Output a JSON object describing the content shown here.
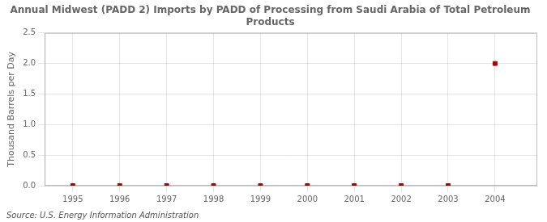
{
  "chart_data": {
    "type": "scatter",
    "title": "Annual Midwest (PADD 2) Imports by PADD of Processing from Saudi Arabia of Total Petroleum\nProducts",
    "ylabel": "Thousand Barrels per Day",
    "annotations": [
      "Source: U.S. Energy Information Administration"
    ],
    "x": [
      1995,
      1996,
      1997,
      1998,
      1999,
      2000,
      2001,
      2002,
      2003,
      2004
    ],
    "values": [
      0,
      0,
      0,
      0,
      0,
      0,
      0,
      0,
      0,
      2.0
    ],
    "color": "#aa0000",
    "marker": "square",
    "xlim": [
      1994.4,
      2004.9
    ],
    "xticks": [
      1995,
      1996,
      1997,
      1998,
      1999,
      2000,
      2001,
      2002,
      2003,
      2004
    ],
    "ylim": [
      0,
      2.5
    ],
    "yticks": [
      {
        "value": 0.0,
        "label": "0.0"
      },
      0.5,
      {
        "value": 1.0,
        "label": "1.0"
      },
      1.5,
      {
        "value": 2.0,
        "label": "2.0"
      },
      2.5
    ],
    "grid": true
  }
}
